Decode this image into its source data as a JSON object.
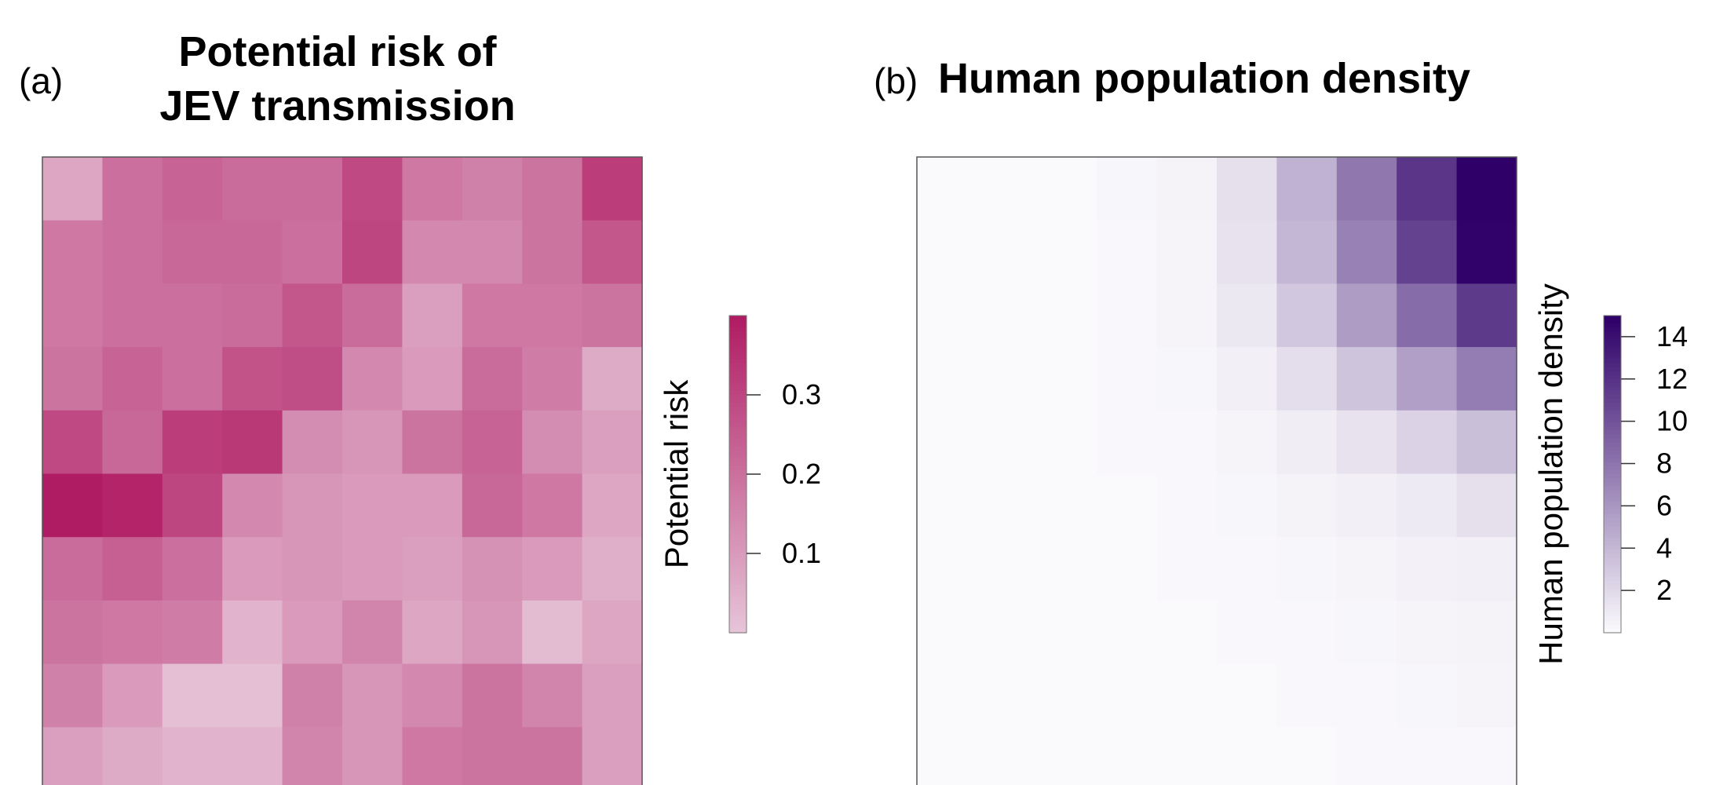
{
  "panels": {
    "a": {
      "label": "(a)",
      "title_line1": "Potential risk of",
      "title_line2": "JEV transmission"
    },
    "b": {
      "label": "(b)",
      "title": "Human population density"
    }
  },
  "chart_data": [
    {
      "type": "heatmap",
      "panel": "(a)",
      "title": "Potential risk of JEV transmission",
      "legend_title": "Potential risk",
      "color_scale": {
        "low": "#e6c4d8",
        "high": "#b01c63"
      },
      "value_range": [
        0.0,
        0.4
      ],
      "legend_ticks": [
        0.1,
        0.2,
        0.3
      ],
      "legend_tick_labels": [
        "0.1",
        "0.2",
        "0.3"
      ],
      "grid": [
        [
          0.07,
          0.2,
          0.23,
          0.21,
          0.21,
          0.29,
          0.18,
          0.16,
          0.19,
          0.32
        ],
        [
          0.18,
          0.2,
          0.22,
          0.22,
          0.2,
          0.3,
          0.14,
          0.14,
          0.19,
          0.26
        ],
        [
          0.18,
          0.2,
          0.2,
          0.21,
          0.26,
          0.21,
          0.09,
          0.18,
          0.18,
          0.19
        ],
        [
          0.19,
          0.23,
          0.2,
          0.27,
          0.28,
          0.14,
          0.1,
          0.21,
          0.17,
          0.06
        ],
        [
          0.29,
          0.22,
          0.32,
          0.33,
          0.13,
          0.11,
          0.19,
          0.23,
          0.13,
          0.09
        ],
        [
          0.4,
          0.38,
          0.3,
          0.14,
          0.11,
          0.1,
          0.1,
          0.22,
          0.18,
          0.07
        ],
        [
          0.21,
          0.24,
          0.2,
          0.1,
          0.11,
          0.1,
          0.09,
          0.12,
          0.1,
          0.05
        ],
        [
          0.19,
          0.18,
          0.17,
          0.04,
          0.1,
          0.15,
          0.07,
          0.11,
          0.02,
          0.07
        ],
        [
          0.16,
          0.1,
          0.01,
          0.01,
          0.16,
          0.11,
          0.14,
          0.19,
          0.15,
          0.09
        ],
        [
          0.09,
          0.06,
          0.04,
          0.04,
          0.15,
          0.11,
          0.18,
          0.19,
          0.19,
          0.09
        ]
      ]
    },
    {
      "type": "heatmap",
      "panel": "(b)",
      "title": "Human population density",
      "legend_title": "Human population density",
      "color_scale": {
        "low": "#faf9fc",
        "high": "#2e0068"
      },
      "value_range": [
        0.0,
        15.0
      ],
      "legend_ticks": [
        2,
        4,
        6,
        8,
        10,
        12,
        14
      ],
      "legend_tick_labels": [
        "2",
        "4",
        "6",
        "8",
        "10",
        "12",
        "14"
      ],
      "grid": [
        [
          0.0,
          0.0,
          0.0,
          0.2,
          0.4,
          1.5,
          4.3,
          7.8,
          11.8,
          15.0
        ],
        [
          0.0,
          0.0,
          0.0,
          0.1,
          0.3,
          1.4,
          4.0,
          7.2,
          11.0,
          14.8
        ],
        [
          0.0,
          0.0,
          0.0,
          0.1,
          0.3,
          1.0,
          3.0,
          5.6,
          8.5,
          11.5
        ],
        [
          0.0,
          0.0,
          0.0,
          0.1,
          0.2,
          0.6,
          1.6,
          3.2,
          5.4,
          7.5
        ],
        [
          0.0,
          0.0,
          0.0,
          0.1,
          0.1,
          0.3,
          0.7,
          1.4,
          2.3,
          3.5
        ],
        [
          0.0,
          0.0,
          0.0,
          0.0,
          0.1,
          0.2,
          0.4,
          0.6,
          0.9,
          1.5
        ],
        [
          0.0,
          0.0,
          0.0,
          0.0,
          0.1,
          0.1,
          0.2,
          0.3,
          0.5,
          0.6
        ],
        [
          0.0,
          0.0,
          0.0,
          0.0,
          0.0,
          0.1,
          0.1,
          0.2,
          0.3,
          0.4
        ],
        [
          0.0,
          0.0,
          0.0,
          0.0,
          0.0,
          0.0,
          0.1,
          0.1,
          0.2,
          0.3
        ],
        [
          0.0,
          0.0,
          0.0,
          0.0,
          0.0,
          0.0,
          0.0,
          0.1,
          0.1,
          0.1
        ]
      ]
    }
  ]
}
